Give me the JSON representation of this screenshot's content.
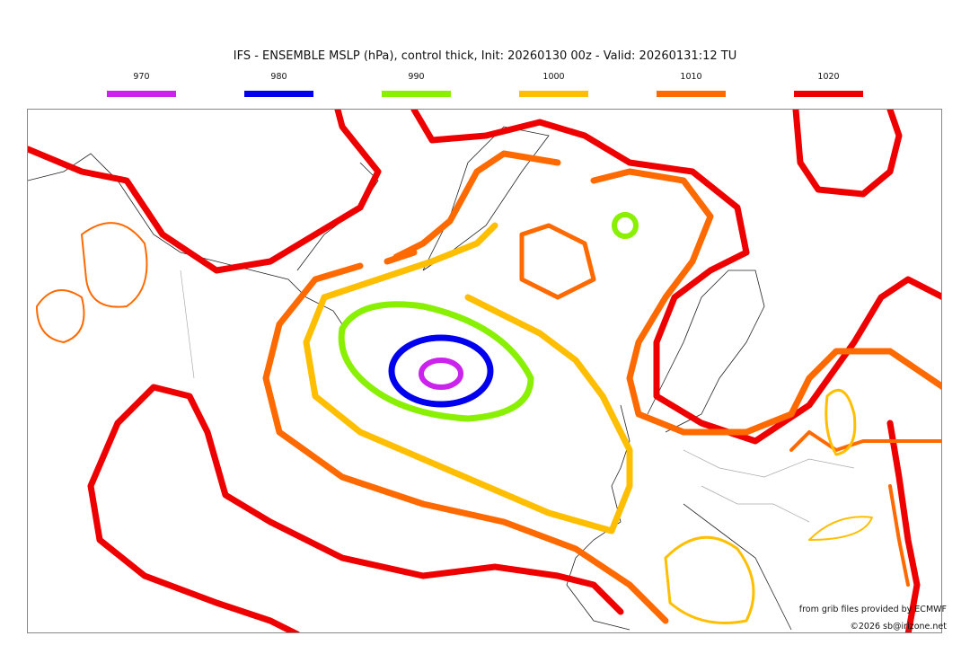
{
  "title": "IFS - ENSEMBLE MSLP (hPa), control thick, Init: 20260130 00z - Valid: 20260131:12 TU",
  "legend": [
    {
      "label": "970",
      "color": "#cc22ee"
    },
    {
      "label": "980",
      "color": "#0000ee"
    },
    {
      "label": "990",
      "color": "#88f000"
    },
    {
      "label": "1000",
      "color": "#ffbf00"
    },
    {
      "label": "1010",
      "color": "#ff6a00"
    },
    {
      "label": "1020",
      "color": "#ee0000"
    }
  ],
  "credits": {
    "source": "from grib files provided by ECMWF",
    "copyright": "©2026 sb@irizone.net"
  }
}
